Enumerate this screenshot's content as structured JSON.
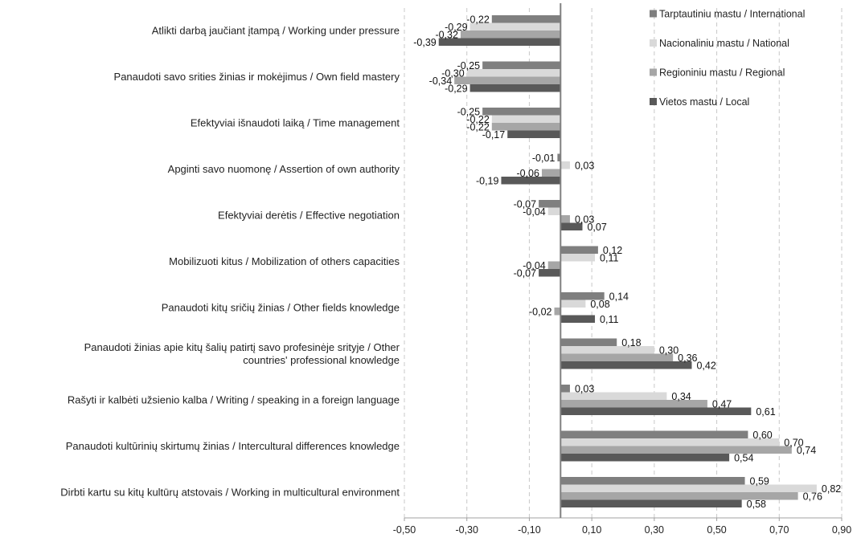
{
  "chart_data": {
    "type": "bar",
    "orientation": "horizontal",
    "title": "",
    "xlabel": "",
    "ylabel": "",
    "xlim": [
      -0.5,
      0.9
    ],
    "x_ticks": [
      -0.5,
      -0.3,
      -0.1,
      0.1,
      0.3,
      0.5,
      0.7,
      0.9
    ],
    "x_tick_labels": [
      "-0,50",
      "-0,30",
      "-0,10",
      "0,10",
      "0,30",
      "0,50",
      "0,70",
      "0,90"
    ],
    "grid": true,
    "legend_position": "top-right",
    "categories": [
      [
        "Atlikti darbą jaučiant įtampą / Working under pressure"
      ],
      [
        "Panaudoti savo srities žinias ir mokėjimus / Own field mastery"
      ],
      [
        "Efektyviai išnaudoti laiką / Time management"
      ],
      [
        "Apginti savo nuomonę / Assertion of own authority"
      ],
      [
        "Efektyviai derėtis / Effective negotiation"
      ],
      [
        "Mobilizuoti kitus / Mobilization of others capacities"
      ],
      [
        "Panaudoti kitų sričių žinias / Other fields knowledge"
      ],
      [
        "Panaudoti žinias apie kitų šalių patirtį savo profesinėje srityje / Other",
        "countries' professional knowledge"
      ],
      [
        "Rašyti ir kalbėti užsienio kalba / Writing / speaking in a foreign language"
      ],
      [
        "Panaudoti kultūrinių skirtumų žinias / Intercultural differences knowledge"
      ],
      [
        "Dirbti kartu su kitų kultūrų atstovais / Working in multicultural environment"
      ]
    ],
    "series": [
      {
        "name": "Tarptautiniu mastu / International",
        "color": "#7f7f7f",
        "values": [
          -0.22,
          -0.25,
          -0.25,
          -0.01,
          -0.07,
          0.12,
          0.14,
          0.18,
          0.03,
          0.6,
          0.59
        ],
        "labels": [
          "-0,22",
          "-0,25",
          "-0,25",
          "-0,01",
          "-0,07",
          "0,12",
          "0,14",
          "0,18",
          "0,03",
          "0,60",
          "0,59"
        ]
      },
      {
        "name": "Nacionaliniu mastu / National",
        "color": "#d9d9d9",
        "values": [
          -0.29,
          -0.3,
          -0.22,
          0.03,
          -0.04,
          0.11,
          0.08,
          0.3,
          0.34,
          0.7,
          0.82
        ],
        "labels": [
          "-0,29",
          "-0,30",
          "-0,22",
          "0,03",
          "-0,04",
          "0,11",
          "0,08",
          "0,30",
          "0,34",
          "0,70",
          "0,82"
        ]
      },
      {
        "name": "Regioniniu mastu / Regional",
        "color": "#a6a6a6",
        "values": [
          -0.32,
          -0.34,
          -0.22,
          -0.06,
          0.03,
          -0.04,
          -0.02,
          0.36,
          0.47,
          0.74,
          0.76
        ],
        "labels": [
          "-0,32",
          "-0,34",
          "-0,22",
          "-0,06",
          "0,03",
          "-0,04",
          "-0,02",
          "0,36",
          "0,47",
          "0,74",
          "0,76"
        ]
      },
      {
        "name": "Vietos mastu / Local",
        "color": "#595959",
        "values": [
          -0.39,
          -0.29,
          -0.17,
          -0.19,
          0.07,
          -0.07,
          0.11,
          0.42,
          0.61,
          0.54,
          0.58
        ],
        "labels": [
          "-0,39",
          "-0,29",
          "-0,17",
          "-0,19",
          "0,07",
          "-0,07",
          "0,11",
          "0,42",
          "0,61",
          "0,54",
          "0,58"
        ]
      }
    ]
  }
}
